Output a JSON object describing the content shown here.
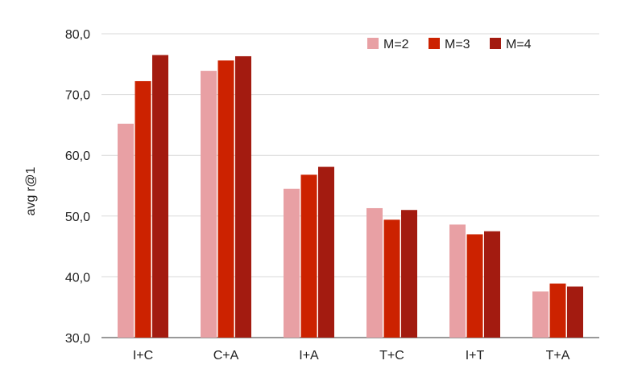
{
  "chart_data": {
    "type": "bar",
    "title": "",
    "xlabel": "",
    "ylabel": "avg r@1",
    "ylim": [
      30,
      80
    ],
    "yticks": [
      "30,0",
      "40,0",
      "50,0",
      "60,0",
      "70,0",
      "80,0"
    ],
    "grid": true,
    "legend_position": "top-right",
    "categories": [
      "I+C",
      "C+A",
      "I+A",
      "T+C",
      "I+T",
      "T+A"
    ],
    "series": [
      {
        "name": "M=2",
        "color": "#e8a0a4",
        "values": [
          65.2,
          73.9,
          54.5,
          51.3,
          48.6,
          37.6
        ]
      },
      {
        "name": "M=3",
        "color": "#cc2200",
        "values": [
          72.2,
          75.6,
          56.8,
          49.4,
          47.0,
          38.9
        ]
      },
      {
        "name": "M=4",
        "color": "#a31b10",
        "values": [
          76.5,
          76.3,
          58.1,
          51.0,
          47.5,
          38.4
        ]
      }
    ]
  }
}
